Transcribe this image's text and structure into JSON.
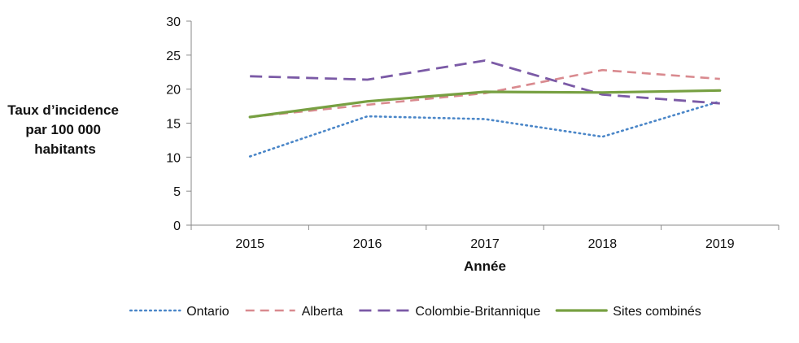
{
  "chart_data": {
    "type": "line",
    "title": "",
    "xlabel": "Année",
    "ylabel": "Taux d’incidence par 100 000 habitants",
    "ylabel_lines": [
      "Taux d’incidence",
      "par 100 000",
      "habitants"
    ],
    "x": [
      2015,
      2016,
      2017,
      2018,
      2019
    ],
    "x_labels": [
      "2015",
      "2016",
      "2017",
      "2018",
      "2019"
    ],
    "ylim": [
      0,
      30
    ],
    "yticks": [
      0,
      5,
      10,
      15,
      20,
      25,
      30
    ],
    "ytick_labels": [
      "0",
      "5",
      "10",
      "15",
      "20",
      "25",
      "30"
    ],
    "grid": false,
    "legend_position": "bottom",
    "series": [
      {
        "name": "Ontario",
        "values": [
          10.1,
          16.0,
          15.6,
          13.0,
          18.2
        ],
        "color": "#4a86c8",
        "dash": "dotted"
      },
      {
        "name": "Alberta",
        "values": [
          15.9,
          17.7,
          19.4,
          22.8,
          21.5
        ],
        "color": "#d98a8f",
        "dash": "dashed"
      },
      {
        "name": "Colombie-Britannique",
        "values": [
          21.9,
          21.4,
          24.2,
          19.2,
          17.9
        ],
        "color": "#7b5aa6",
        "dash": "longdash"
      },
      {
        "name": "Sites combinés",
        "values": [
          15.9,
          18.2,
          19.6,
          19.5,
          19.8
        ],
        "color": "#77a042",
        "dash": "solid"
      }
    ]
  }
}
